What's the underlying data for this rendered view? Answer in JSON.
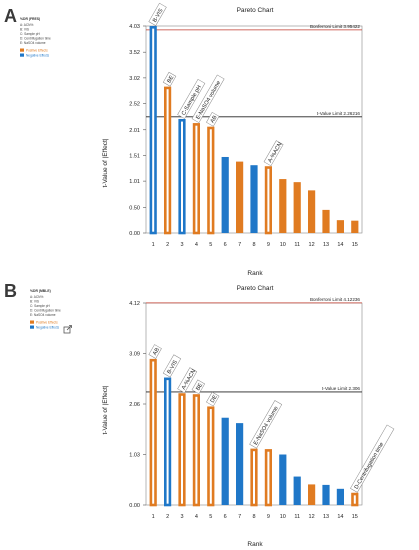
{
  "colors": {
    "positive": "#e07b21",
    "negative": "#1f77c8",
    "bonferroni_line": "#c0392b",
    "tlimit_line": "#222222",
    "label_box": "#888888"
  },
  "panels": [
    {
      "letter": "A",
      "legend": {
        "header": "%DR (FRES)",
        "factors": [
          "A: ACN%",
          "B: VIS",
          "C: Sample pH",
          "D: Centrifugation time",
          "E: NaSO4 volume"
        ],
        "entries": [
          {
            "label": "Positive Effects",
            "color": "#e07b21"
          },
          {
            "label": "Negative Effects",
            "color": "#1f77c8"
          }
        ]
      }
    },
    {
      "letter": "B",
      "legend": {
        "header": "%DR (MBLE)",
        "factors": [
          "A: ACN%",
          "B: VIS",
          "C: Sample pH",
          "D: Centrifugation time",
          "E: NaSO4 volume"
        ],
        "entries": [
          {
            "label": "Positive Effects",
            "color": "#e07b21"
          },
          {
            "label": "Negative Effects",
            "color": "#1f77c8"
          }
        ]
      }
    }
  ],
  "chart_data": [
    {
      "type": "bar",
      "title": "Pareto Chart",
      "xlabel": "Rank",
      "ylabel": "t-Value of |Effect|",
      "categories": [
        "1",
        "2",
        "3",
        "4",
        "5",
        "6",
        "7",
        "8",
        "9",
        "10",
        "11",
        "12",
        "13",
        "14",
        "15"
      ],
      "values": [
        4.03,
        2.85,
        2.22,
        2.14,
        2.07,
        1.48,
        1.39,
        1.32,
        1.3,
        1.05,
        0.99,
        0.83,
        0.45,
        0.25,
        0.24
      ],
      "signs": [
        "neg",
        "pos",
        "neg",
        "pos",
        "pos",
        "neg",
        "pos",
        "neg",
        "pos",
        "pos",
        "pos",
        "pos",
        "pos",
        "pos",
        "pos"
      ],
      "highlighted": [
        true,
        true,
        true,
        true,
        true,
        false,
        false,
        false,
        true,
        false,
        false,
        false,
        false,
        false,
        false
      ],
      "bar_labels": [
        {
          "rank": 1,
          "text": "B-VIS"
        },
        {
          "rank": 2,
          "text": "BE"
        },
        {
          "rank": 3,
          "text": "C-Sample pH"
        },
        {
          "rank": 4,
          "text": "E-NaSO4 volume"
        },
        {
          "rank": 5,
          "text": "AB"
        },
        {
          "rank": 9,
          "text": "A-%ACN"
        }
      ],
      "yticks": [
        "0.00",
        "0.50",
        "1.01",
        "1.51",
        "2.01",
        "2.52",
        "3.02",
        "3.52",
        "4.03"
      ],
      "ytick_values": [
        0.0,
        0.5,
        1.01,
        1.51,
        2.01,
        2.52,
        3.02,
        3.52,
        4.03
      ],
      "ylim": [
        0,
        4.03
      ],
      "limits": [
        {
          "name": "Bonferroni Limit",
          "label": "Bonferroni Limit 3.95422",
          "value": 3.95422
        },
        {
          "name": "t-Value Limit",
          "label": "t-Value Limit 2.26216",
          "value": 2.26216
        }
      ],
      "grid": false
    },
    {
      "type": "bar",
      "title": "Pareto Chart",
      "xlabel": "Rank",
      "ylabel": "t-Value of |Effect|",
      "categories": [
        "1",
        "2",
        "3",
        "4",
        "5",
        "6",
        "7",
        "8",
        "9",
        "10",
        "11",
        "12",
        "13",
        "14",
        "15"
      ],
      "values": [
        2.98,
        2.6,
        2.28,
        2.26,
        2.01,
        1.78,
        1.67,
        1.15,
        1.14,
        1.03,
        0.58,
        0.42,
        0.41,
        0.33,
        0.25
      ],
      "signs": [
        "pos",
        "neg",
        "pos",
        "pos",
        "pos",
        "neg",
        "neg",
        "pos",
        "pos",
        "neg",
        "neg",
        "pos",
        "neg",
        "neg",
        "pos"
      ],
      "highlighted": [
        true,
        true,
        true,
        true,
        true,
        false,
        false,
        true,
        true,
        false,
        false,
        false,
        false,
        false,
        true
      ],
      "bar_labels": [
        {
          "rank": 1,
          "text": "AB"
        },
        {
          "rank": 2,
          "text": "B-VIS"
        },
        {
          "rank": 3,
          "text": "A-%ACN"
        },
        {
          "rank": 4,
          "text": "BE"
        },
        {
          "rank": 5,
          "text": "DE"
        },
        {
          "rank": 8,
          "text": "E-NaSO4 volume"
        },
        {
          "rank": 15,
          "text": "D-Centrifugation time"
        }
      ],
      "yticks": [
        "0.00",
        "1.03",
        "2.06",
        "3.09",
        "4.12"
      ],
      "ytick_values": [
        0.0,
        1.03,
        2.06,
        3.09,
        4.12
      ],
      "ylim": [
        0,
        4.12
      ],
      "limits": [
        {
          "name": "Bonferroni Limit",
          "label": "Bonferroni Limit 4.12236",
          "value": 4.12236
        },
        {
          "name": "t-Value Limit",
          "label": "t-Value Limit 2.306",
          "value": 2.306
        }
      ],
      "grid": false
    }
  ]
}
